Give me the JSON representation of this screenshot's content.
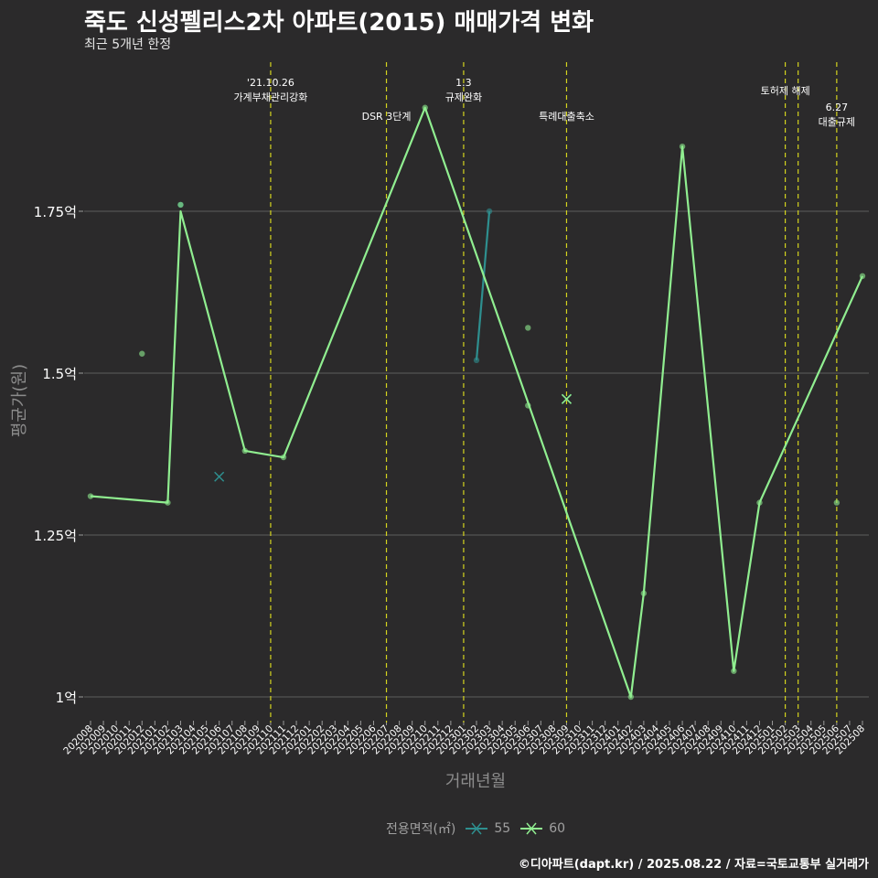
{
  "title": "죽도 신성펠리스2차 아파트(2015) 매매가격 변화",
  "subtitle": "최근 5개년 한정",
  "footer": "©디아파트(dapt.kr) / 2025.08.22 / 자료=국토교통부 실거래가",
  "legend": {
    "title": "전용면적(㎡)",
    "items": [
      {
        "label": "55",
        "color": "#2e8f8f"
      },
      {
        "label": "60",
        "color": "#90ee90"
      }
    ]
  },
  "chart_data": {
    "type": "line",
    "xlabel": "거래년월",
    "ylabel": "평균가(원)",
    "ylim": [
      0.92,
      1.94
    ],
    "yticks": [
      {
        "value": 1.0,
        "label": "1억"
      },
      {
        "value": 1.25,
        "label": "1.25억"
      },
      {
        "value": 1.5,
        "label": "1.5억"
      },
      {
        "value": 1.75,
        "label": "1.75억"
      }
    ],
    "categories": [
      "202008",
      "202009",
      "202010",
      "202011",
      "202012",
      "202101",
      "202102",
      "202103",
      "202104",
      "202105",
      "202106",
      "202107",
      "202108",
      "202109",
      "202110",
      "202111",
      "202112",
      "202201",
      "202202",
      "202203",
      "202204",
      "202205",
      "202206",
      "202207",
      "202208",
      "202209",
      "202210",
      "202211",
      "202212",
      "202301",
      "202302",
      "202303",
      "202304",
      "202305",
      "202306",
      "202307",
      "202308",
      "202309",
      "202310",
      "202311",
      "202312",
      "202401",
      "202402",
      "202403",
      "202404",
      "202405",
      "202406",
      "202407",
      "202408",
      "202409",
      "202410",
      "202411",
      "202412",
      "202501",
      "202502",
      "202503",
      "202504",
      "202505",
      "202506",
      "202507",
      "202508"
    ],
    "grid": true,
    "series": [
      {
        "name": "55",
        "color": "#2e8f8f",
        "line": [
          [
            "202302",
            1.52
          ],
          [
            "202303",
            1.75
          ]
        ],
        "points": [
          [
            "202103",
            1.76
          ],
          [
            "202302",
            1.52
          ],
          [
            "202303",
            1.75
          ]
        ],
        "cross": [
          [
            "202106",
            1.34
          ],
          [
            "202309",
            1.46
          ]
        ]
      },
      {
        "name": "60",
        "color": "#90ee90",
        "line": [
          [
            "202008",
            1.31
          ],
          [
            "202102",
            1.3
          ],
          [
            "202103",
            1.75
          ],
          [
            "202108",
            1.38
          ],
          [
            "202111",
            1.37
          ],
          [
            "202210",
            1.91
          ],
          [
            "202402",
            1.0
          ],
          [
            "202403",
            1.16
          ],
          [
            "202406",
            1.85
          ],
          [
            "202410",
            1.04
          ],
          [
            "202412",
            1.3
          ],
          [
            "202508",
            1.65
          ]
        ],
        "points": [
          [
            "202008",
            1.31
          ],
          [
            "202012",
            1.53
          ],
          [
            "202102",
            1.3
          ],
          [
            "202103",
            1.76
          ],
          [
            "202108",
            1.38
          ],
          [
            "202111",
            1.37
          ],
          [
            "202210",
            1.91
          ],
          [
            "202306",
            1.45
          ],
          [
            "202306",
            1.57
          ],
          [
            "202402",
            1.0
          ],
          [
            "202403",
            1.16
          ],
          [
            "202406",
            1.85
          ],
          [
            "202410",
            1.04
          ],
          [
            "202412",
            1.3
          ],
          [
            "202506",
            1.3
          ],
          [
            "202508",
            1.65
          ]
        ],
        "cross": [
          [
            "202309",
            1.46
          ]
        ]
      }
    ],
    "events": [
      {
        "x": "202110",
        "label": "'21.10.26\n가계부채관리강화"
      },
      {
        "x": "202207",
        "label": "DSR 3단계"
      },
      {
        "x": "202301",
        "label": "1.3\n규제완화"
      },
      {
        "x": "202309",
        "label": "특례대출축소"
      },
      {
        "x": "202502",
        "label": ""
      },
      {
        "x": "202503",
        "label": "토허제 해제"
      },
      {
        "x": "202506",
        "label": "6.27\n대출규제"
      }
    ]
  }
}
